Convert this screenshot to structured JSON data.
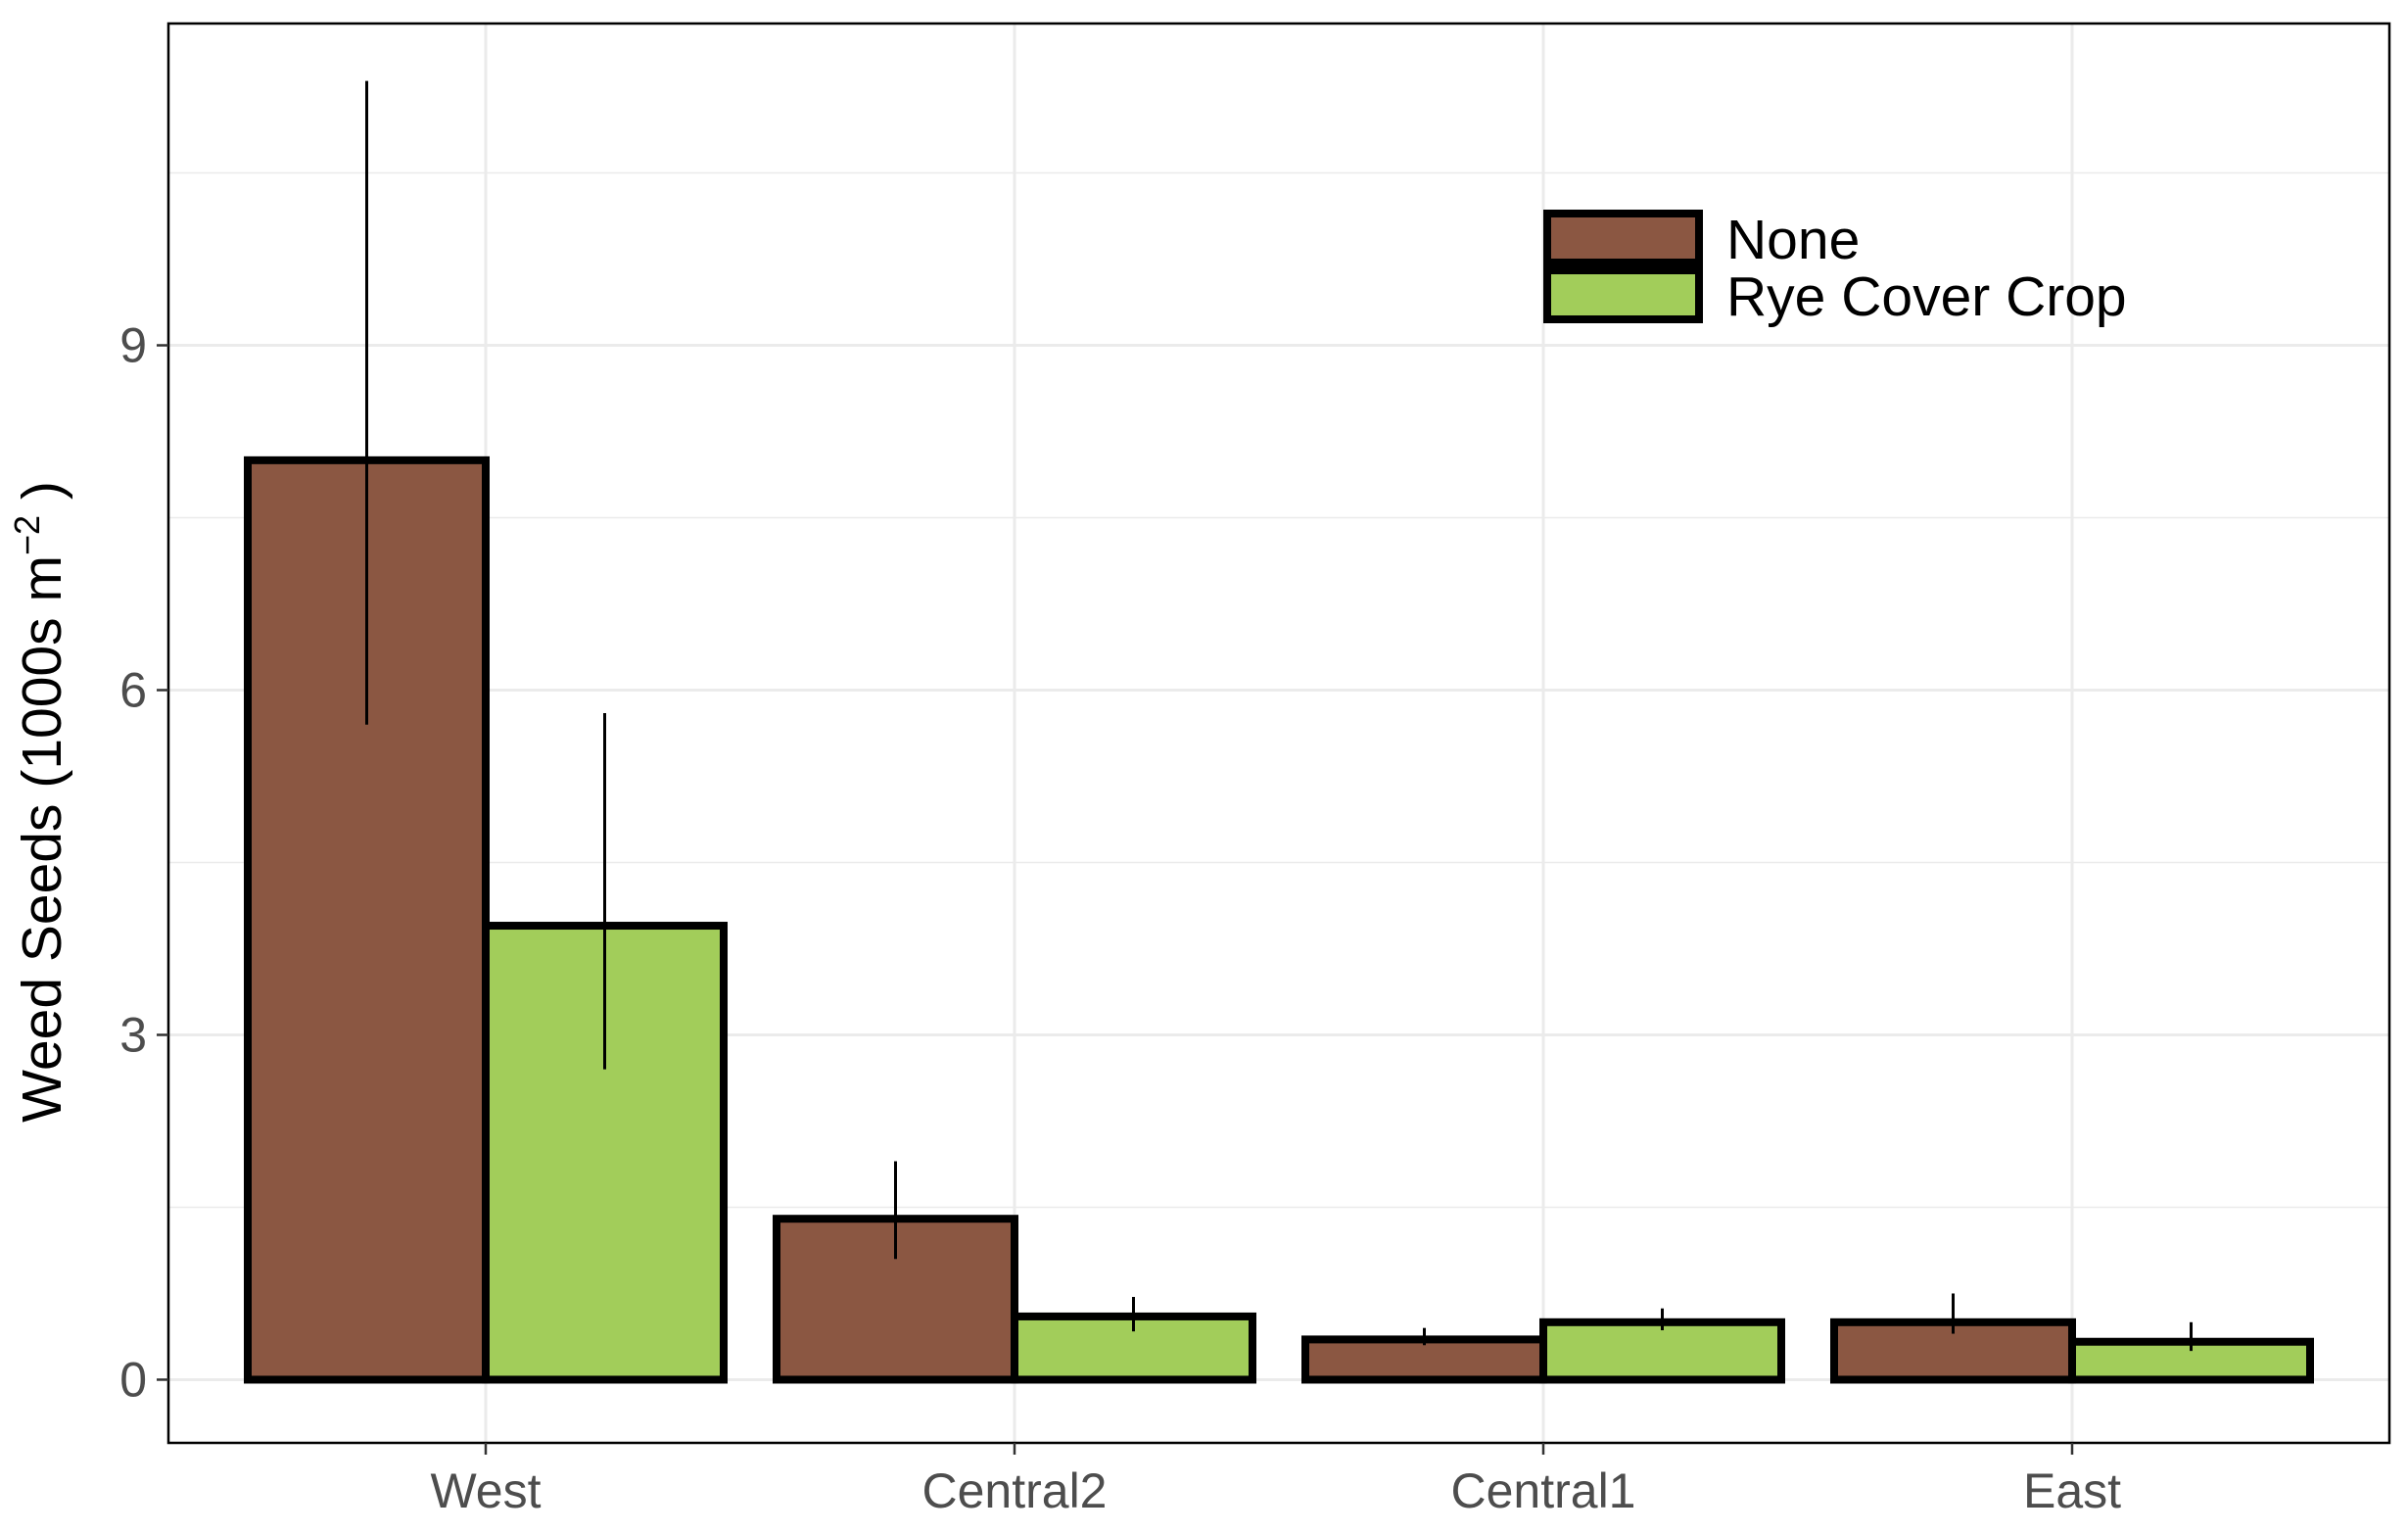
{
  "chart_data": {
    "type": "bar",
    "categories": [
      "West",
      "Central2",
      "Central1",
      "East"
    ],
    "series": [
      {
        "name": "None",
        "color": "#8B5742",
        "values": [
          8.0,
          1.4,
          0.35,
          0.5
        ],
        "error_low": [
          5.7,
          1.05,
          0.3,
          0.4
        ],
        "error_high": [
          11.3,
          1.9,
          0.45,
          0.75
        ]
      },
      {
        "name": "Rye Cover Crop",
        "color": "#A2CD5A",
        "values": [
          3.95,
          0.55,
          0.5,
          0.33
        ],
        "error_low": [
          2.7,
          0.42,
          0.43,
          0.25
        ],
        "error_high": [
          5.8,
          0.72,
          0.62,
          0.5
        ]
      }
    ],
    "ylabel": {
      "main": "Weed Seeds (1000s m",
      "superscript": "−2",
      "close": " )"
    },
    "xlabel": "",
    "ylim": [
      -0.55,
      11.8
    ],
    "yticks": [
      "0",
      "3",
      "6",
      "9"
    ],
    "ytick_values": [
      0,
      3,
      6,
      9
    ],
    "grid": true,
    "legend_position": "top-right",
    "border_color": "#000000",
    "grid_color": "#ebebeb"
  }
}
